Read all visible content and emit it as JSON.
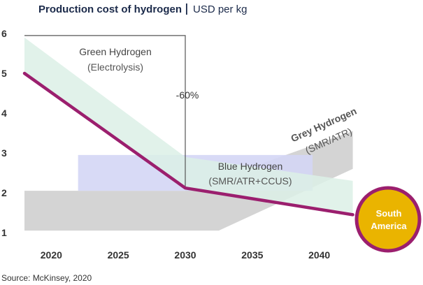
{
  "chart_data": {
    "type": "area",
    "title": "Production cost of hydrogen",
    "unit": "USD per kg",
    "source": "Source: McKinsey, 2020",
    "x_ticks": [
      2020,
      2025,
      2030,
      2035,
      2040
    ],
    "y_ticks": [
      1,
      2,
      3,
      4,
      5,
      6
    ],
    "xlim": [
      2018,
      2045
    ],
    "ylim": [
      0.9,
      6.1
    ],
    "colors": {
      "green_band": "#dcf0e6",
      "blue_band": "#d4d6f5",
      "grey_band": "#d4d4d4",
      "line": "#9b1f6e",
      "circle_fill": "#eab400",
      "circle_stroke": "#9b1f6e",
      "annotation": "#555555"
    },
    "bands": [
      {
        "name": "Grey Hydrogen",
        "sublabel": "(SMR/ATR)",
        "upper": [
          [
            2018,
            2.05
          ],
          [
            2030,
            2.05
          ],
          [
            2042.5,
            3.55
          ]
        ],
        "lower": [
          [
            2018,
            1.05
          ],
          [
            2032.5,
            1.05
          ],
          [
            2042.5,
            2.6
          ]
        ]
      },
      {
        "name": "Blue Hydrogen",
        "sublabel": "(SMR/ATR+CCUS)",
        "upper": [
          [
            2022,
            2.95
          ],
          [
            2039.5,
            2.95
          ]
        ],
        "lower": [
          [
            2022,
            2.05
          ],
          [
            2039.5,
            2.05
          ]
        ]
      },
      {
        "name": "Green Hydrogen",
        "sublabel": "(Electrolysis)",
        "upper": [
          [
            2018,
            5.9
          ],
          [
            2030,
            2.9
          ],
          [
            2042.5,
            2.3
          ]
        ],
        "lower": [
          [
            2018,
            5.0
          ],
          [
            2030,
            2.1
          ],
          [
            2042.5,
            1.5
          ]
        ]
      }
    ],
    "series": [
      {
        "name": "South America",
        "x": [
          2018,
          2030,
          2042.5
        ],
        "y": [
          5.0,
          2.12,
          1.45
        ]
      }
    ],
    "annotations": [
      {
        "text": "-60%",
        "x": 2030,
        "y_from": 5.95,
        "y_to": 2.12
      }
    ]
  }
}
